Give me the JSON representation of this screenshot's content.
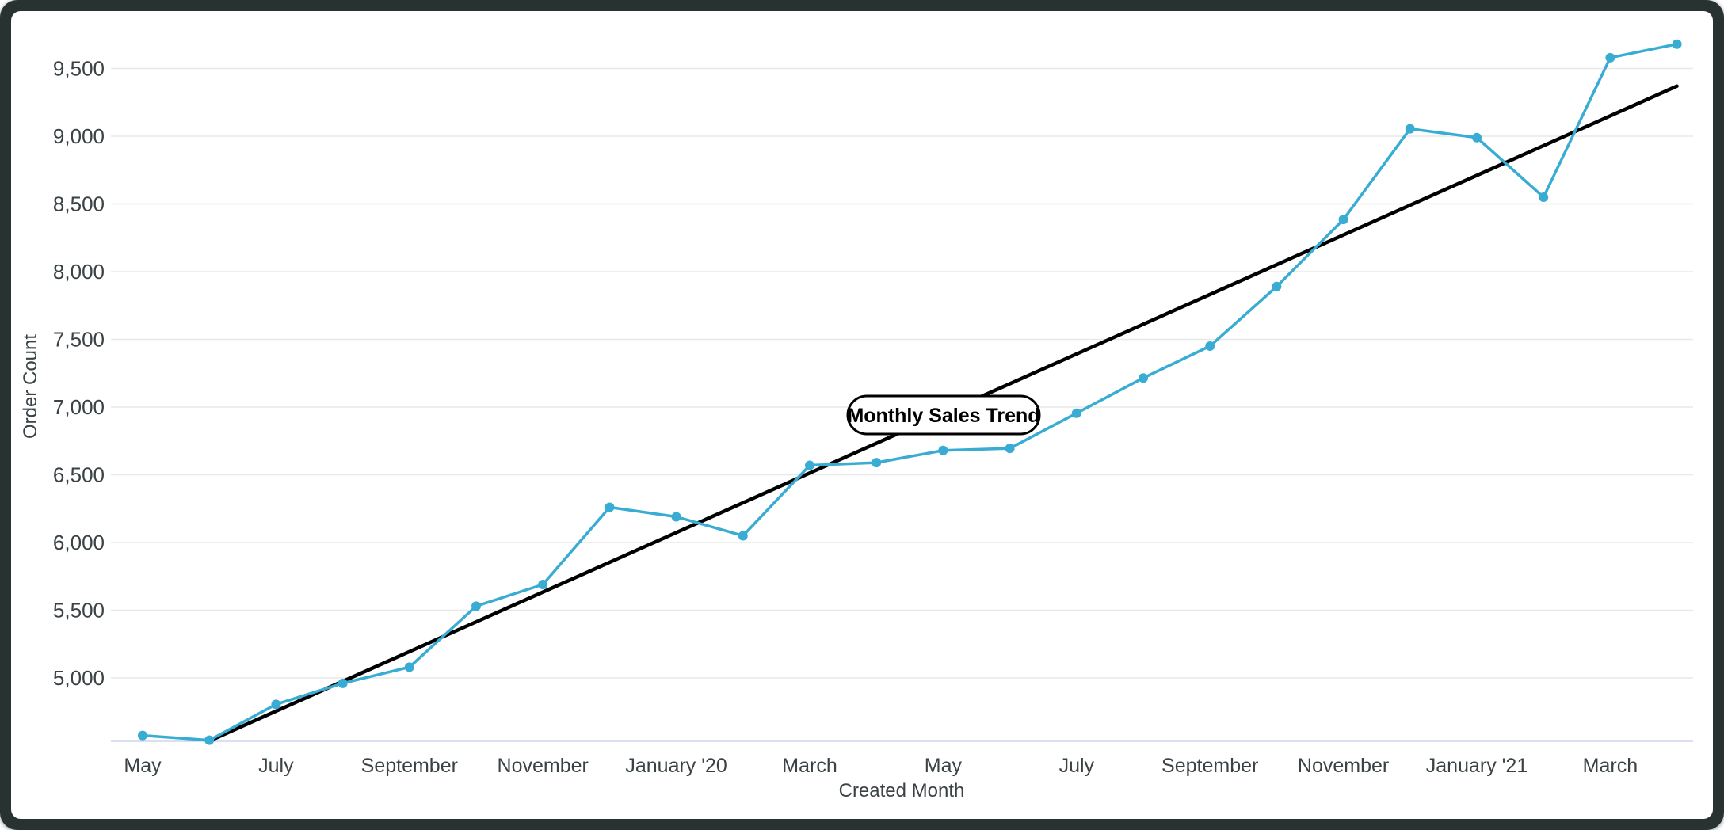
{
  "chart_data": {
    "type": "line",
    "annotation_label": "Monthly Sales Trend",
    "xlabel": "Created Month",
    "ylabel": "Order Count",
    "categories": [
      "May 2019",
      "June 2019",
      "July 2019",
      "August 2019",
      "September 2019",
      "October 2019",
      "November 2019",
      "December 2019",
      "January 2020",
      "February 2020",
      "March 2020",
      "April 2020",
      "May 2020",
      "June 2020",
      "July 2020",
      "August 2020",
      "September 2020",
      "October 2020",
      "November 2020",
      "December 2020",
      "January 2021",
      "February 2021",
      "March 2021",
      "April 2021"
    ],
    "series": [
      {
        "name": "Order Count",
        "kind": "line_with_markers",
        "color": "#39acd3",
        "values": [
          4575,
          4540,
          4805,
          4960,
          5080,
          5530,
          5690,
          6260,
          6190,
          6050,
          6570,
          6590,
          6680,
          6695,
          6955,
          7215,
          7450,
          7890,
          8385,
          9055,
          8990,
          8550,
          9580,
          9680
        ]
      },
      {
        "name": "Linear Trend",
        "kind": "linear_trend",
        "color": "#000000",
        "start_value": 4535,
        "end_value": 9370,
        "start_index": 1,
        "end_index": 23
      }
    ],
    "x_ticks": [
      {
        "index": 0,
        "label": "May"
      },
      {
        "index": 2,
        "label": "July"
      },
      {
        "index": 4,
        "label": "September"
      },
      {
        "index": 6,
        "label": "November"
      },
      {
        "index": 8,
        "label": "January '20"
      },
      {
        "index": 10,
        "label": "March"
      },
      {
        "index": 12,
        "label": "May"
      },
      {
        "index": 14,
        "label": "July"
      },
      {
        "index": 16,
        "label": "September"
      },
      {
        "index": 18,
        "label": "November"
      },
      {
        "index": 20,
        "label": "January '21"
      },
      {
        "index": 22,
        "label": "March"
      }
    ],
    "y_ticks": [
      {
        "value": 5000,
        "label": "5,000"
      },
      {
        "value": 5500,
        "label": "5,500"
      },
      {
        "value": 6000,
        "label": "6,000"
      },
      {
        "value": 6500,
        "label": "6,500"
      },
      {
        "value": 7000,
        "label": "7,000"
      },
      {
        "value": 7500,
        "label": "7,500"
      },
      {
        "value": 8000,
        "label": "8,000"
      },
      {
        "value": 8500,
        "label": "8,500"
      },
      {
        "value": 9000,
        "label": "9,000"
      },
      {
        "value": 9500,
        "label": "9,500"
      }
    ],
    "ylim": [
      4535,
      9830
    ],
    "grid": true,
    "legend": "none"
  },
  "style": {
    "frame_color": "#273231",
    "background": "#ffffff",
    "gridline_color": "#e8e8e8",
    "x_axis_line_color": "#ced5ee",
    "tick_text_color": "#3a4245",
    "series_color": "#39acd3",
    "trend_color": "#000000"
  }
}
